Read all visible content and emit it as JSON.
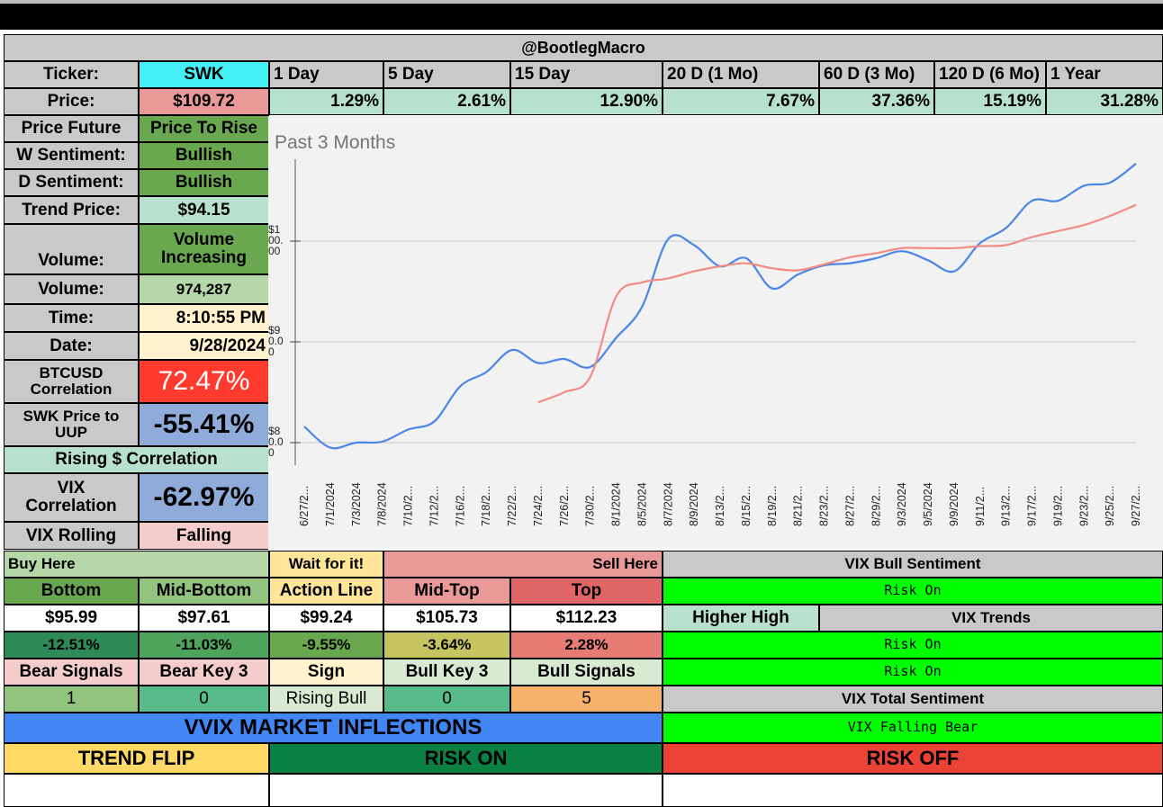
{
  "header": {
    "title": "@BootlegMacro"
  },
  "ticker": {
    "label": "Ticker:",
    "value": "SWK"
  },
  "periods": [
    "1 Day",
    "5 Day",
    "15 Day",
    "20 D (1 Mo)",
    "60 D (3 Mo)",
    "120 D (6 Mo)",
    "1 Year"
  ],
  "price": {
    "label": "Price:",
    "value": "$109.72"
  },
  "changes": [
    "1.29%",
    "2.61%",
    "12.90%",
    "7.67%",
    "37.36%",
    "15.19%",
    "31.28%"
  ],
  "left_panel": {
    "price_future": {
      "label": "Price Future",
      "value": "Price To Rise"
    },
    "w_sentiment": {
      "label": "W Sentiment:",
      "value": "Bullish"
    },
    "d_sentiment": {
      "label": "D Sentiment:",
      "value": "Bullish"
    },
    "trend_price": {
      "label": "Trend Price:",
      "value": "$94.15"
    },
    "volume_trend": {
      "label": "Volume:",
      "value_line1": "Volume",
      "value_line2": "Increasing"
    },
    "volume": {
      "label": "Volume:",
      "value": "974,287"
    },
    "time": {
      "label": "Time:",
      "value": "8:10:55 PM"
    },
    "date": {
      "label": "Date:",
      "value": "9/28/2024"
    },
    "btc_corr": {
      "label_line1": "BTCUSD",
      "label_line2": "Correlation",
      "value": "72.47%"
    },
    "uup_corr": {
      "label_line1": "SWK Price to",
      "label_line2": "UUP",
      "value": "-55.41%"
    },
    "rising_dollar": {
      "label": "Rising $ Correlation"
    },
    "vix_corr": {
      "label_line1": "VIX",
      "label_line2": "Correlation",
      "value": "-62.97%"
    },
    "vix_rolling": {
      "label": "VIX Rolling",
      "value": "Falling"
    }
  },
  "levels": {
    "buy_here": "Buy Here",
    "wait": "Wait for it!",
    "sell_here": "Sell Here",
    "headers": [
      "Bottom",
      "Mid-Bottom",
      "Action Line",
      "Mid-Top",
      "Top"
    ],
    "prices": [
      "$95.99",
      "$97.61",
      "$99.24",
      "$105.73",
      "$112.23"
    ],
    "pcts": [
      "-12.51%",
      "-11.03%",
      "-9.55%",
      "-3.64%",
      "2.28%"
    ],
    "signal_headers": [
      "Bear Signals",
      "Bear Key 3",
      "Sign",
      "Bull Key 3",
      "Bull Signals"
    ],
    "signal_values": [
      "1",
      "0",
      "Rising Bull",
      "0",
      "5"
    ]
  },
  "vix_panel": {
    "bull_sentiment_label": "VIX Bull Sentiment",
    "bull_sentiment_value": "Risk On",
    "higher_high": "Higher High",
    "vix_trends_label": "VIX Trends",
    "trend_value_1": "Risk On",
    "trend_value_2": "Risk On",
    "total_sentiment_label": "VIX Total Sentiment",
    "total_sentiment_value": "VIX Falling Bear"
  },
  "vvix": {
    "title": "VVIX MARKET INFLECTIONS",
    "trend_flip": "TREND FLIP",
    "risk_on": "RISK ON",
    "risk_off": "RISK OFF"
  },
  "colors": {
    "price_line": "#4a86e8",
    "sma_line": "#f28b82",
    "strong_green": "#00ff00",
    "red_corr": "#ff3b30",
    "blue_corr": "#8fabd9"
  },
  "chart_data": {
    "type": "line",
    "title": "Past 3 Months",
    "x": [
      "6/27/2...",
      "7/1/2024",
      "7/3/2024",
      "7/8/2024",
      "7/10/2...",
      "7/12/2...",
      "7/16/2...",
      "7/18/2...",
      "7/22/2...",
      "7/24/2...",
      "7/26/2...",
      "7/30/2...",
      "8/1/2024",
      "8/5/2024",
      "8/7/2024",
      "8/9/2024",
      "8/13/2...",
      "8/15/2...",
      "8/19/2...",
      "8/21/2...",
      "8/23/2...",
      "8/27/2...",
      "8/29/2...",
      "9/3/2024",
      "9/5/2024",
      "9/9/2024",
      "9/11/2...",
      "9/13/2...",
      "9/17/2...",
      "9/19/2...",
      "9/23/2...",
      "9/25/2...",
      "9/27/2..."
    ],
    "y_ticks": [
      {
        "value": 80,
        "lines": [
          "$8",
          "0.0",
          "0"
        ]
      },
      {
        "value": 90,
        "lines": [
          "$9",
          "0.0",
          "0"
        ]
      },
      {
        "value": 100,
        "lines": [
          "$1",
          "00.",
          "00"
        ]
      }
    ],
    "ylim": [
      77.5,
      109.0
    ],
    "grid": true,
    "series": [
      {
        "values": [
          81.6,
          79.5,
          80.0,
          80.1,
          81.3,
          82.1,
          85.6,
          87.0,
          89.2,
          87.9,
          88.3,
          87.5,
          90.4,
          93.5,
          100.2,
          99.6,
          97.5,
          98.3,
          95.3,
          96.7,
          97.6,
          97.8,
          98.3,
          99.0,
          98.1,
          97.0,
          99.8,
          101.3,
          104.0,
          104.0,
          105.5,
          105.8,
          107.7
        ]
      },
      {
        "values": [
          null,
          null,
          null,
          null,
          null,
          null,
          null,
          null,
          null,
          84.0,
          85.0,
          86.5,
          94.5,
          95.9,
          96.3,
          97.0,
          97.5,
          97.8,
          97.3,
          97.1,
          97.7,
          98.4,
          98.8,
          99.3,
          99.3,
          99.3,
          99.5,
          99.6,
          100.4,
          101.0,
          101.6,
          102.5,
          103.6
        ]
      }
    ]
  }
}
